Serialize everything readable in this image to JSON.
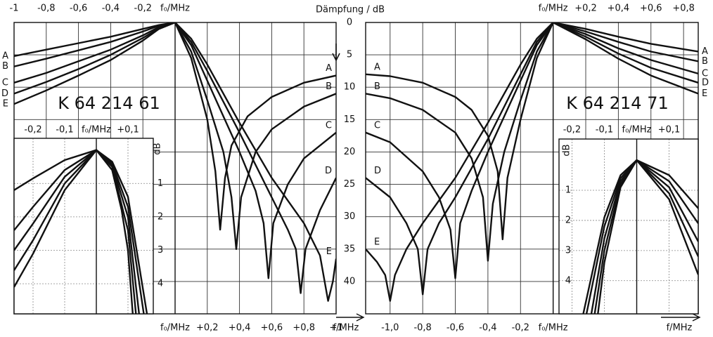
{
  "chart_data": [
    {
      "type": "line",
      "title": "K 64 214 61",
      "ylabel": "Dämpfung / dB",
      "xlabel": "f/MHz",
      "xlim": [
        -1,
        1
      ],
      "ylim": [
        0,
        45
      ],
      "yticks": [
        0,
        5,
        10,
        15,
        20,
        25,
        30,
        35,
        40
      ],
      "grid": true,
      "color": "#111111",
      "xticks_top": [
        -1,
        {
          "value": -0.8,
          "label": "-0,8"
        },
        {
          "value": -0.6,
          "label": "-0,6"
        },
        {
          "value": -0.4,
          "label": "-0,4"
        },
        {
          "value": -0.2,
          "label": "-0,2"
        },
        {
          "value": 0,
          "label": "f₀/MHz"
        }
      ],
      "xticks": [
        {
          "value": 0,
          "label": "f₀/MHz"
        },
        {
          "value": 0.2,
          "label": "+0,2"
        },
        {
          "value": 0.4,
          "label": "+0,4"
        },
        {
          "value": 0.6,
          "label": "+0,6"
        },
        {
          "value": 0.8,
          "label": "+0,8"
        },
        {
          "value": 1,
          "label": "+1"
        }
      ],
      "series": [
        {
          "name": "A",
          "x": [
            -1,
            -0.8,
            -0.6,
            -0.4,
            -0.2,
            -0.1,
            0,
            0.1,
            0.2,
            0.25,
            0.28,
            0.31,
            0.35,
            0.45,
            0.6,
            0.8,
            1
          ],
          "values": [
            5.2,
            4.2,
            3.2,
            2.2,
            1,
            0.4,
            0,
            5.5,
            15,
            23,
            32,
            24,
            19,
            14.5,
            11.5,
            9.3,
            8.2
          ]
        },
        {
          "name": "B",
          "x": [
            -1,
            -0.8,
            -0.6,
            -0.4,
            -0.2,
            -0.1,
            0,
            0.1,
            0.2,
            0.3,
            0.35,
            0.38,
            0.41,
            0.5,
            0.6,
            0.8,
            1
          ],
          "values": [
            6.8,
            5.6,
            4.3,
            3,
            1.4,
            0.5,
            0,
            4.5,
            12,
            20,
            27,
            35,
            27,
            20,
            16.5,
            13,
            11
          ]
        },
        {
          "name": "C",
          "x": [
            -1,
            -0.8,
            -0.6,
            -0.4,
            -0.2,
            -0.1,
            0,
            0.1,
            0.2,
            0.3,
            0.4,
            0.5,
            0.55,
            0.58,
            0.61,
            0.7,
            0.8,
            1
          ],
          "values": [
            9.3,
            7.8,
            6,
            4.2,
            2,
            0.7,
            0,
            3.5,
            9,
            14.5,
            20,
            26,
            31,
            39.5,
            31,
            25,
            21,
            17
          ]
        },
        {
          "name": "D",
          "x": [
            -1,
            -0.8,
            -0.6,
            -0.4,
            -0.2,
            -0.1,
            0,
            0.1,
            0.2,
            0.4,
            0.6,
            0.7,
            0.75,
            0.78,
            0.81,
            0.9,
            1
          ],
          "values": [
            11,
            9.2,
            7.2,
            5,
            2.4,
            0.9,
            0,
            3,
            7.5,
            17,
            27,
            32,
            35,
            41.8,
            35,
            29,
            24
          ]
        },
        {
          "name": "E",
          "x": [
            -1,
            -0.8,
            -0.6,
            -0.4,
            -0.2,
            -0.1,
            0,
            0.1,
            0.2,
            0.4,
            0.6,
            0.8,
            0.9,
            0.95,
            0.98,
            1
          ],
          "values": [
            12.6,
            10.5,
            8.2,
            5.8,
            2.8,
            1,
            0,
            2.5,
            6.5,
            15.5,
            24,
            31,
            36,
            43,
            40,
            36.5
          ]
        }
      ]
    },
    {
      "type": "line",
      "title": "K 64 214 71",
      "xlabel": "f/MHz",
      "xlim": [
        -1.15,
        0.89
      ],
      "ylim": [
        0,
        45
      ],
      "yticks": [
        0,
        5,
        10,
        15,
        20,
        25,
        30,
        35,
        40
      ],
      "grid": true,
      "color": "#111111",
      "xticks_top": [
        {
          "value": 0,
          "label": "f₀/MHz"
        },
        {
          "value": 0.2,
          "label": "+0,2"
        },
        {
          "value": 0.4,
          "label": "+0,4"
        },
        {
          "value": 0.6,
          "label": "+0,6"
        },
        {
          "value": 0.8,
          "label": "+0,8"
        }
      ],
      "xticks": [
        {
          "value": -1,
          "label": "-1,0"
        },
        {
          "value": -0.8,
          "label": "-0,8"
        },
        {
          "value": -0.6,
          "label": "-0,6"
        },
        {
          "value": -0.4,
          "label": "-0,4"
        },
        {
          "value": -0.2,
          "label": "-0,2"
        },
        {
          "value": 0,
          "label": "f₀/MHz"
        }
      ],
      "series": [
        {
          "name": "A",
          "x": [
            -1.15,
            -1,
            -0.8,
            -0.6,
            -0.5,
            -0.4,
            -0.34,
            -0.31,
            -0.28,
            -0.2,
            -0.1,
            0,
            0.2,
            0.4,
            0.6,
            0.89
          ],
          "values": [
            8,
            8.3,
            9.3,
            11.5,
            13.5,
            17.5,
            23,
            33.5,
            24,
            15,
            5.5,
            0,
            1,
            2.2,
            3.3,
            4.5
          ]
        },
        {
          "name": "B",
          "x": [
            -1.15,
            -1,
            -0.8,
            -0.6,
            -0.5,
            -0.43,
            -0.4,
            -0.37,
            -0.3,
            -0.2,
            -0.1,
            0,
            0.2,
            0.4,
            0.6,
            0.89
          ],
          "values": [
            11,
            11.7,
            13.5,
            17,
            21,
            27,
            36.8,
            28,
            20,
            12,
            4.5,
            0,
            1.4,
            3,
            4.5,
            6
          ]
        },
        {
          "name": "C",
          "x": [
            -1.15,
            -1,
            -0.8,
            -0.7,
            -0.63,
            -0.6,
            -0.57,
            -0.5,
            -0.4,
            -0.3,
            -0.2,
            -0.1,
            0,
            0.2,
            0.4,
            0.6,
            0.89
          ],
          "values": [
            17,
            18.5,
            23,
            27,
            32,
            39.5,
            31,
            26,
            20,
            14.5,
            9,
            3.5,
            0,
            1.8,
            4,
            5.8,
            7.9
          ]
        },
        {
          "name": "D",
          "x": [
            -1.15,
            -1,
            -0.9,
            -0.83,
            -0.8,
            -0.77,
            -0.7,
            -0.6,
            -0.4,
            -0.2,
            -0.1,
            0,
            0.2,
            0.4,
            0.6,
            0.89
          ],
          "values": [
            24,
            27,
            31,
            35,
            42,
            35,
            31,
            27,
            18,
            8,
            3,
            0,
            2.2,
            4.8,
            7,
            9.3
          ]
        },
        {
          "name": "E",
          "x": [
            -1.15,
            -1.08,
            -1.03,
            -1,
            -0.97,
            -0.9,
            -0.8,
            -0.6,
            -0.4,
            -0.2,
            -0.1,
            0,
            0.2,
            0.4,
            0.6,
            0.89
          ],
          "values": [
            35,
            37,
            39,
            43,
            39,
            35,
            31,
            24,
            15.5,
            6.5,
            2.5,
            0,
            2.6,
            5.6,
            8.2,
            11
          ]
        }
      ]
    },
    {
      "type": "line",
      "ylabel": "dB",
      "xlim": [
        -0.26,
        0.18
      ],
      "ylim": [
        -0.35,
        4.9
      ],
      "yticks": [
        1,
        2,
        3,
        4
      ],
      "grid": true,
      "color": "#111111",
      "xticks_top": [
        {
          "value": -0.2,
          "label": "-0,2"
        },
        {
          "value": -0.1,
          "label": "-0,1"
        },
        {
          "value": 0,
          "label": "f₀/MHz"
        },
        {
          "value": 0.1,
          "label": "+0,1"
        }
      ],
      "series": [
        {
          "name": "A",
          "x": [
            -0.26,
            -0.2,
            -0.1,
            0,
            0.05,
            0.08,
            0.1,
            0.115
          ],
          "values": [
            1.2,
            0.85,
            0.3,
            0,
            0.6,
            1.8,
            3,
            4.9
          ]
        },
        {
          "name": "B",
          "x": [
            -0.26,
            -0.2,
            -0.1,
            0,
            0.05,
            0.1,
            0.125
          ],
          "values": [
            2.4,
            1.7,
            0.6,
            0,
            0.5,
            2.4,
            4.9
          ]
        },
        {
          "name": "C",
          "x": [
            -0.26,
            -0.2,
            -0.1,
            0,
            0.05,
            0.1,
            0.135
          ],
          "values": [
            3,
            2.2,
            0.8,
            0,
            0.45,
            2,
            4.9
          ]
        },
        {
          "name": "D",
          "x": [
            -0.26,
            -0.2,
            -0.1,
            0,
            0.05,
            0.1,
            0.15
          ],
          "values": [
            3.6,
            2.7,
            1,
            0,
            0.4,
            1.7,
            4.9
          ]
        },
        {
          "name": "E",
          "x": [
            -0.26,
            -0.2,
            -0.1,
            0,
            0.05,
            0.1,
            0.16
          ],
          "values": [
            4.1,
            3.1,
            1.2,
            0,
            0.35,
            1.4,
            4.9
          ]
        }
      ]
    },
    {
      "type": "line",
      "ylabel": "dB",
      "xlim": [
        -0.24,
        0.19
      ],
      "ylim": [
        -0.7,
        5.1
      ],
      "yticks": [
        1,
        2,
        3,
        4
      ],
      "grid": true,
      "color": "#111111",
      "xticks_top": [
        {
          "value": -0.2,
          "label": "-0,2"
        },
        {
          "value": -0.1,
          "label": "-0,1"
        },
        {
          "value": 0,
          "label": "f₀/MHz"
        },
        {
          "value": 0.1,
          "label": "+0,1"
        }
      ],
      "series": [
        {
          "name": "A",
          "x": [
            -0.12,
            -0.1,
            -0.05,
            0,
            0.1,
            0.19
          ],
          "values": [
            5.1,
            3.4,
            0.9,
            0,
            0.5,
            1.6
          ]
        },
        {
          "name": "B",
          "x": [
            -0.13,
            -0.1,
            -0.05,
            0,
            0.1,
            0.19
          ],
          "values": [
            5.1,
            3,
            0.8,
            0,
            0.7,
            2.1
          ]
        },
        {
          "name": "C",
          "x": [
            -0.14,
            -0.1,
            -0.05,
            0,
            0.1,
            0.19
          ],
          "values": [
            5.1,
            2.6,
            0.7,
            0,
            0.9,
            2.7
          ]
        },
        {
          "name": "D",
          "x": [
            -0.155,
            -0.1,
            -0.05,
            0,
            0.1,
            0.19
          ],
          "values": [
            5.1,
            2.2,
            0.6,
            0,
            1.1,
            3.2
          ]
        },
        {
          "name": "E",
          "x": [
            -0.165,
            -0.1,
            -0.05,
            0,
            0.1,
            0.19
          ],
          "values": [
            5.1,
            1.9,
            0.5,
            0,
            1.3,
            3.8
          ]
        }
      ]
    }
  ]
}
